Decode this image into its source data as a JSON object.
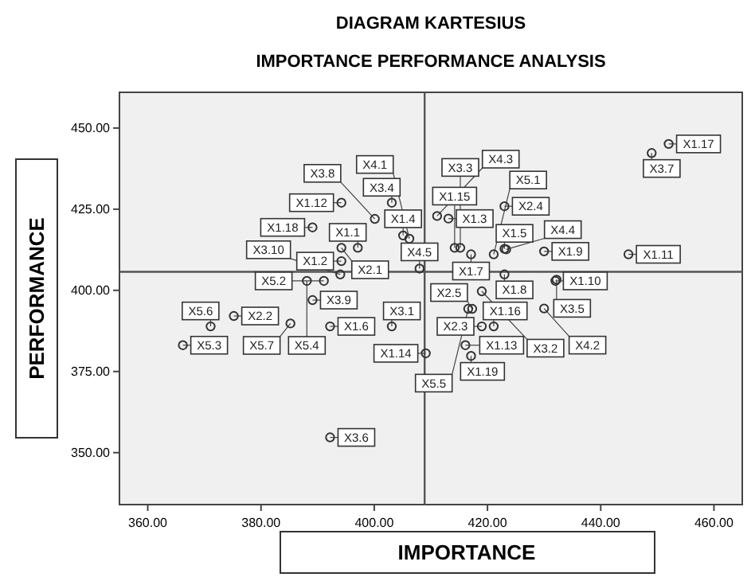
{
  "chart_data": {
    "type": "scatter",
    "title": "DIAGRAM KARTESIUS",
    "subtitle": "IMPORTANCE PERFORMANCE ANALYSIS",
    "xlabel": "IMPORTANCE",
    "ylabel": "PERFORMANCE",
    "xlim": [
      355,
      465
    ],
    "ylim": [
      334,
      461
    ],
    "xticks": [
      {
        "value": 360,
        "label": "360.00"
      },
      {
        "value": 380,
        "label": "380.00"
      },
      {
        "value": 400,
        "label": "400.00"
      },
      {
        "value": 420,
        "label": "420.00"
      },
      {
        "value": 440,
        "label": "440.00"
      },
      {
        "value": 460,
        "label": "460.00"
      }
    ],
    "yticks": [
      {
        "value": 350,
        "label": "350.00"
      },
      {
        "value": 375,
        "label": "375.00"
      },
      {
        "value": 400,
        "label": "400.00"
      },
      {
        "value": 425,
        "label": "425.00"
      },
      {
        "value": 450,
        "label": "450.00"
      }
    ],
    "grid": false,
    "marker": "circle",
    "ref_lines": [
      {
        "axis": "x",
        "value": 408.9,
        "color": "#555555"
      },
      {
        "axis": "y",
        "value": 405.7,
        "color": "#555555"
      }
    ],
    "series": [
      {
        "color": "#333333",
        "x": [
          397.1,
          394.2,
          413.1,
          405.1,
          423.0,
          392.2,
          417.1,
          423.0,
          430.0,
          432.0,
          444.9,
          394.2,
          416.1,
          409.1,
          414.2,
          421.1,
          452.0,
          389.1,
          417.1,
          394.2,
          375.2,
          419.0,
          423.0,
          417.3,
          403.1,
          419.0,
          415.2,
          403.1,
          432.2,
          392.2,
          449.0,
          400.1,
          389.1,
          394.0,
          406.2,
          430.0,
          411.1,
          423.3,
          408.0,
          421.1,
          391.1,
          366.2,
          388.1,
          416.6,
          371.1,
          385.2
        ],
        "values": [
          413.1,
          409.0,
          422.1,
          416.9,
          412.8,
          388.9,
          411.1,
          404.9,
          412.0,
          402.9,
          411.1,
          427.0,
          383.1,
          380.6,
          413.1,
          388.9,
          445.1,
          419.4,
          379.8,
          413.1,
          392.1,
          388.9,
          425.9,
          394.3,
          388.9,
          399.7,
          413.1,
          427.0,
          403.3,
          354.7,
          442.3,
          422.0,
          397.0,
          404.9,
          415.9,
          394.4,
          422.9,
          412.6,
          406.7,
          411.1,
          402.9,
          383.1,
          402.9,
          394.3,
          388.9,
          389.8
        ],
        "value_labels": [
          "X1.1",
          "X1.2",
          "X1.3",
          "X1.4",
          "X1.5",
          "X1.6",
          "X1.7",
          "X1.8",
          "X1.9",
          "X1.10",
          "X1.11",
          "X1.12",
          "X1.13",
          "X1.14",
          "X1.15",
          "X1.16",
          "X1.17",
          "X1.18",
          "X1.19",
          "X2.1",
          "X2.2",
          "X2.3",
          "X2.4",
          "X2.5",
          "X3.1",
          "X3.2",
          "X3.3",
          "X3.4",
          "X3.5",
          "X3.6",
          "X3.7",
          "X3.8",
          "X3.9",
          "X3.10",
          "X4.1",
          "X4.2",
          "X4.3",
          "X4.4",
          "X4.5",
          "X5.1",
          "X5.2",
          "X5.3",
          "X5.4",
          "X5.5",
          "X5.6",
          "X5.7"
        ]
      }
    ]
  }
}
